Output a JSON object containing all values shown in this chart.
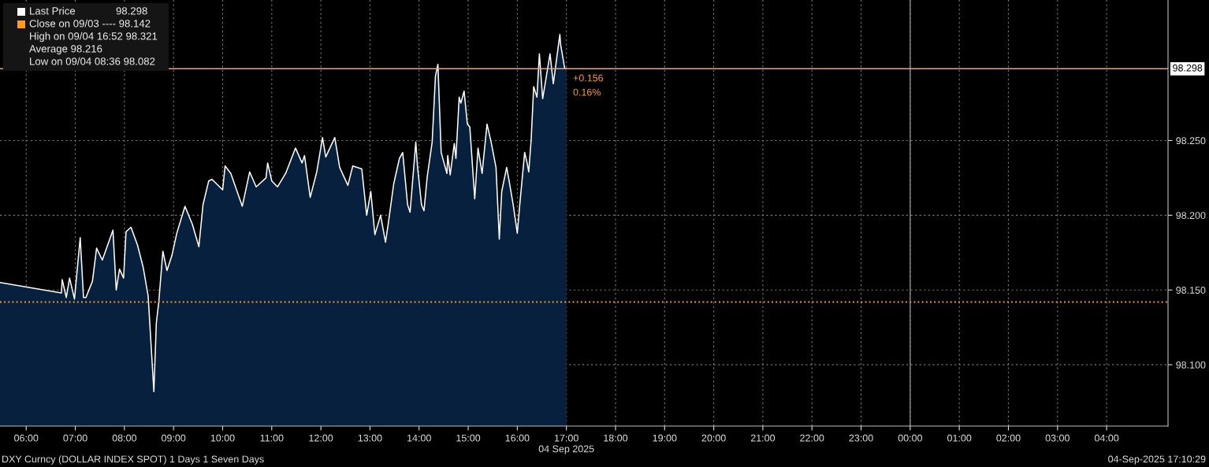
{
  "chart_data": {
    "type": "area",
    "x": [
      "2025-09-04T05:28",
      "2025-09-04T06:43",
      "2025-09-04T06:44",
      "2025-09-04T06:49",
      "2025-09-04T06:53",
      "2025-09-04T06:59",
      "2025-09-04T07:06",
      "2025-09-04T07:10",
      "2025-09-04T07:13",
      "2025-09-04T07:21",
      "2025-09-04T07:26",
      "2025-09-04T07:33",
      "2025-09-04T07:46",
      "2025-09-04T07:50",
      "2025-09-04T07:54",
      "2025-09-04T07:59",
      "2025-09-04T08:02",
      "2025-09-04T08:08",
      "2025-09-04T08:16",
      "2025-09-04T08:23",
      "2025-09-04T08:29",
      "2025-09-04T08:36",
      "2025-09-04T08:39",
      "2025-09-04T08:42",
      "2025-09-04T08:47",
      "2025-09-04T08:52",
      "2025-09-04T08:58",
      "2025-09-04T09:04",
      "2025-09-04T09:14",
      "2025-09-04T09:23",
      "2025-09-04T09:31",
      "2025-09-04T09:36",
      "2025-09-04T09:43",
      "2025-09-04T09:47",
      "2025-09-04T10:00",
      "2025-09-04T10:03",
      "2025-09-04T10:10",
      "2025-09-04T10:24",
      "2025-09-04T10:33",
      "2025-09-04T10:41",
      "2025-09-04T10:53",
      "2025-09-04T10:55",
      "2025-09-04T11:00",
      "2025-09-04T11:07",
      "2025-09-04T11:17",
      "2025-09-04T11:29",
      "2025-09-04T11:37",
      "2025-09-04T11:40",
      "2025-09-04T11:47",
      "2025-09-04T11:55",
      "2025-09-04T11:59",
      "2025-09-04T12:02",
      "2025-09-04T12:06",
      "2025-09-04T12:17",
      "2025-09-04T12:23",
      "2025-09-04T12:33",
      "2025-09-04T12:39",
      "2025-09-04T12:50",
      "2025-09-04T12:56",
      "2025-09-04T13:01",
      "2025-09-04T13:06",
      "2025-09-04T13:13",
      "2025-09-04T13:19",
      "2025-09-04T13:22",
      "2025-09-04T13:29",
      "2025-09-04T13:36",
      "2025-09-04T13:40",
      "2025-09-04T13:46",
      "2025-09-04T13:49",
      "2025-09-04T13:56",
      "2025-09-04T13:58",
      "2025-09-04T14:03",
      "2025-09-04T14:06",
      "2025-09-04T14:10",
      "2025-09-04T14:16",
      "2025-09-04T14:20",
      "2025-09-04T14:23",
      "2025-09-04T14:27",
      "2025-09-04T14:34",
      "2025-09-04T14:35",
      "2025-09-04T14:38",
      "2025-09-04T14:43",
      "2025-09-04T14:45",
      "2025-09-04T14:49",
      "2025-09-04T14:51",
      "2025-09-04T14:55",
      "2025-09-04T14:59",
      "2025-09-04T15:02",
      "2025-09-04T15:08",
      "2025-09-04T15:12",
      "2025-09-04T15:17",
      "2025-09-04T15:23",
      "2025-09-04T15:28",
      "2025-09-04T15:34",
      "2025-09-04T15:38",
      "2025-09-04T15:41",
      "2025-09-04T15:47",
      "2025-09-04T15:50",
      "2025-09-04T15:55",
      "2025-09-04T16:00",
      "2025-09-04T16:03",
      "2025-09-04T16:09",
      "2025-09-04T16:12",
      "2025-09-04T16:14",
      "2025-09-04T16:17",
      "2025-09-04T16:20",
      "2025-09-04T16:24",
      "2025-09-04T16:27",
      "2025-09-04T16:31",
      "2025-09-04T16:40",
      "2025-09-04T16:44",
      "2025-09-04T16:52",
      "2025-09-04T16:53",
      "2025-09-04T16:58",
      "2025-09-04T17:00"
    ],
    "series": [
      {
        "name": "Last Price",
        "color": "#06203e",
        "values": [
          98.155,
          98.148,
          98.157,
          98.145,
          98.158,
          98.144,
          98.185,
          98.145,
          98.145,
          98.156,
          98.178,
          98.17,
          98.19,
          98.15,
          98.164,
          98.158,
          98.189,
          98.192,
          98.18,
          98.165,
          98.146,
          98.082,
          98.128,
          98.142,
          98.176,
          98.163,
          98.173,
          98.188,
          98.206,
          98.194,
          98.179,
          98.207,
          98.223,
          98.224,
          98.217,
          98.233,
          98.228,
          98.206,
          98.229,
          98.219,
          98.225,
          98.235,
          98.223,
          98.219,
          98.228,
          98.245,
          98.235,
          98.24,
          98.212,
          98.229,
          98.242,
          98.252,
          98.239,
          98.252,
          98.232,
          98.22,
          98.233,
          98.231,
          98.2,
          98.216,
          98.187,
          98.2,
          98.182,
          98.193,
          98.221,
          98.238,
          98.242,
          98.207,
          98.202,
          98.249,
          98.233,
          98.207,
          98.203,
          98.226,
          98.249,
          98.293,
          98.301,
          98.242,
          98.228,
          98.24,
          98.227,
          98.248,
          98.238,
          98.279,
          98.275,
          98.283,
          98.261,
          98.259,
          98.211,
          98.245,
          98.228,
          98.261,
          98.249,
          98.232,
          98.184,
          98.216,
          98.232,
          98.223,
          98.207,
          98.188,
          98.207,
          98.242,
          98.235,
          98.229,
          98.251,
          98.286,
          98.279,
          98.308,
          98.278,
          98.308,
          98.288,
          98.321,
          98.314,
          98.298,
          98.298
        ]
      }
    ],
    "xlim": [
      "2025-09-04T05:28",
      "2025-09-05T05:15"
    ],
    "xticks": [
      {
        "value": "2025-09-04T06:00",
        "label": "06:00"
      },
      {
        "value": "2025-09-04T07:00",
        "label": "07:00"
      },
      {
        "value": "2025-09-04T08:00",
        "label": "08:00"
      },
      {
        "value": "2025-09-04T09:00",
        "label": "09:00"
      },
      {
        "value": "2025-09-04T10:00",
        "label": "10:00"
      },
      {
        "value": "2025-09-04T11:00",
        "label": "11:00"
      },
      {
        "value": "2025-09-04T12:00",
        "label": "12:00"
      },
      {
        "value": "2025-09-04T13:00",
        "label": "13:00"
      },
      {
        "value": "2025-09-04T14:00",
        "label": "14:00"
      },
      {
        "value": "2025-09-04T15:00",
        "label": "15:00"
      },
      {
        "value": "2025-09-04T16:00",
        "label": "16:00"
      },
      {
        "value": "2025-09-04T17:00",
        "label": "17:00"
      },
      {
        "value": "2025-09-04T18:00",
        "label": "18:00"
      },
      {
        "value": "2025-09-04T19:00",
        "label": "19:00"
      },
      {
        "value": "2025-09-04T20:00",
        "label": "20:00"
      },
      {
        "value": "2025-09-04T21:00",
        "label": "21:00"
      },
      {
        "value": "2025-09-04T22:00",
        "label": "22:00"
      },
      {
        "value": "2025-09-04T23:00",
        "label": "23:00"
      },
      {
        "value": "2025-09-05T00:00",
        "label": "00:00"
      },
      {
        "value": "2025-09-05T01:00",
        "label": "01:00"
      },
      {
        "value": "2025-09-05T02:00",
        "label": "02:00"
      },
      {
        "value": "2025-09-05T03:00",
        "label": "03:00"
      },
      {
        "value": "2025-09-05T04:00",
        "label": "04:00"
      }
    ],
    "ylim": [
      98.059,
      98.344
    ],
    "yticks": [
      {
        "value": 98.1,
        "label": "98.100"
      },
      {
        "value": 98.15,
        "label": "98.150"
      },
      {
        "value": 98.2,
        "label": "98.200"
      },
      {
        "value": 98.25,
        "label": "98.250"
      }
    ],
    "grid": true,
    "legend": "top left",
    "ref_lines": [
      {
        "axis": "y",
        "value": 98.142,
        "label": "Close on 09/03 ---- 98.142",
        "color": "#ff9a1f",
        "line_style": "dotted"
      },
      {
        "axis": "y",
        "value": 98.298,
        "label": "98.298",
        "color": "#e6a58a",
        "line_style": "solid"
      },
      {
        "axis": "x",
        "value": "2025-09-05T00:00",
        "color": "#8a8a8a",
        "line_style": "solid"
      }
    ],
    "annotations": [
      "High on 09/04 16:52 98.321",
      "Average 98.216",
      "Low on 09/04 08:36 98.082",
      {
        "text": "+0.156",
        "x": "2025-09-04T17:00",
        "y": 98.298
      },
      {
        "text": "0.16%",
        "x": "2025-09-04T17:00",
        "y": 98.298
      },
      "04 Sep 2025",
      "DXY Curncy (DOLLAR INDEX SPOT) 1 Days 1 Seven Days",
      "04-Sep-2025 17:10:29"
    ]
  }
}
